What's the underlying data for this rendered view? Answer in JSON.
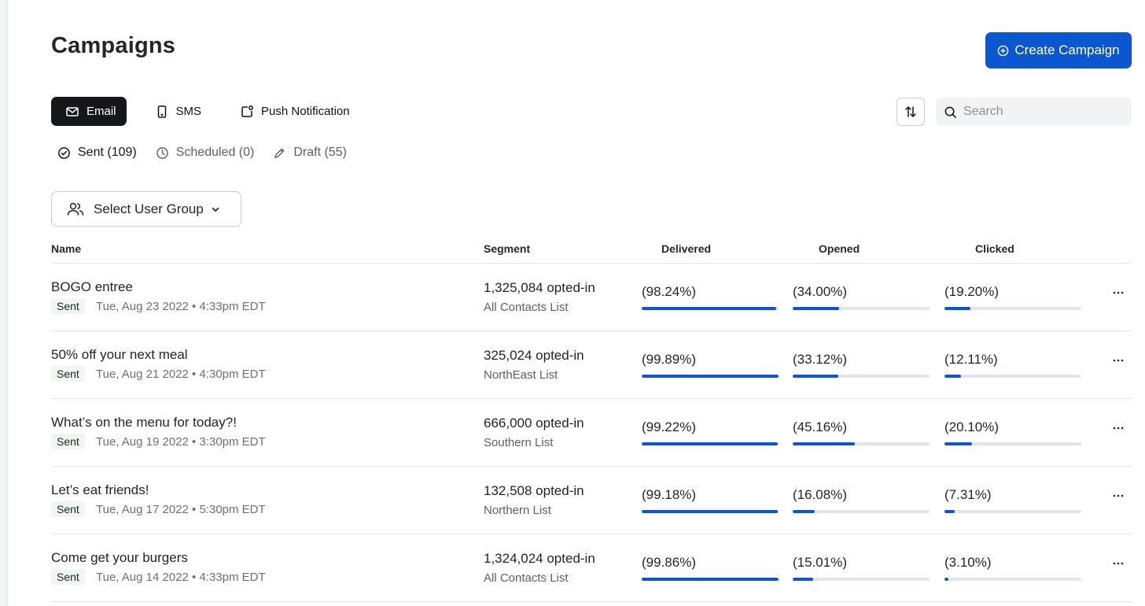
{
  "page": {
    "title": "Campaigns"
  },
  "actions": {
    "create_label": "Create Campaign"
  },
  "channel_tabs": [
    {
      "label": "Email",
      "icon": "mail-icon",
      "active": true
    },
    {
      "label": "SMS",
      "icon": "phone-icon",
      "active": false
    },
    {
      "label": "Push Notification",
      "icon": "push-notification-icon",
      "active": false
    }
  ],
  "status_tabs": [
    {
      "label": "Sent (109)",
      "icon": "check-circle-icon",
      "active": true
    },
    {
      "label": "Scheduled (0)",
      "icon": "clock-icon",
      "active": false
    },
    {
      "label": "Draft (55)",
      "icon": "pencil-icon",
      "active": false
    }
  ],
  "search": {
    "placeholder": "Search",
    "value": ""
  },
  "filter": {
    "user_group_label": "Select User Group"
  },
  "table": {
    "columns": [
      "Name",
      "Segment",
      "Delivered",
      "Opened",
      "Clicked"
    ],
    "rows": [
      {
        "name": "BOGO entree",
        "status": "Sent",
        "date": "Tue, Aug 23 2022 • 4:33pm EDT",
        "count": "1,325,084 opted-in",
        "segment": "All Contacts List",
        "delivered": "(98.24%)",
        "opened": "(34.00%)",
        "clicked": "(19.20%)",
        "delivered_value": 98.24,
        "opened_value": 34.0,
        "clicked_value": 19.2
      },
      {
        "name": "50% off your next meal",
        "status": "Sent",
        "date": "Tue, Aug 21 2022 • 4:30pm EDT",
        "count": "325,024 opted-in",
        "segment": "NorthEast List",
        "delivered": "(99.89%)",
        "opened": "(33.12%)",
        "clicked": "(12.11%)",
        "delivered_value": 99.89,
        "opened_value": 33.12,
        "clicked_value": 12.11
      },
      {
        "name": "What’s on the menu for today?!",
        "status": "Sent",
        "date": "Tue, Aug 19 2022 • 3:30pm EDT",
        "count": "666,000 opted-in",
        "segment": "Southern List",
        "delivered": "(99.22%)",
        "opened": "(45.16%)",
        "clicked": "(20.10%)",
        "delivered_value": 99.22,
        "opened_value": 45.16,
        "clicked_value": 20.1
      },
      {
        "name": "Let’s eat friends!",
        "status": "Sent",
        "date": "Tue, Aug 17 2022 • 5:30pm EDT",
        "count": "132,508 opted-in",
        "segment": "Northern List",
        "delivered": "(99.18%)",
        "opened": "(16.08%)",
        "clicked": "(7.31%)",
        "delivered_value": 99.18,
        "opened_value": 16.08,
        "clicked_value": 7.31
      },
      {
        "name": "Come get your burgers",
        "status": "Sent",
        "date": "Tue, Aug 14 2022 • 4:33pm EDT",
        "count": "1,324,024 opted-in",
        "segment": "All Contacts List",
        "delivered": "(99.86%)",
        "opened": "(15.01%)",
        "clicked": "(3.10%)",
        "delivered_value": 99.86,
        "opened_value": 15.01,
        "clicked_value": 3.1
      }
    ]
  },
  "colors": {
    "accent": "#0b57d0",
    "tab_active_bg": "#15171a",
    "badge_bg": "#eef8f0",
    "track": "#e2e5ea"
  }
}
